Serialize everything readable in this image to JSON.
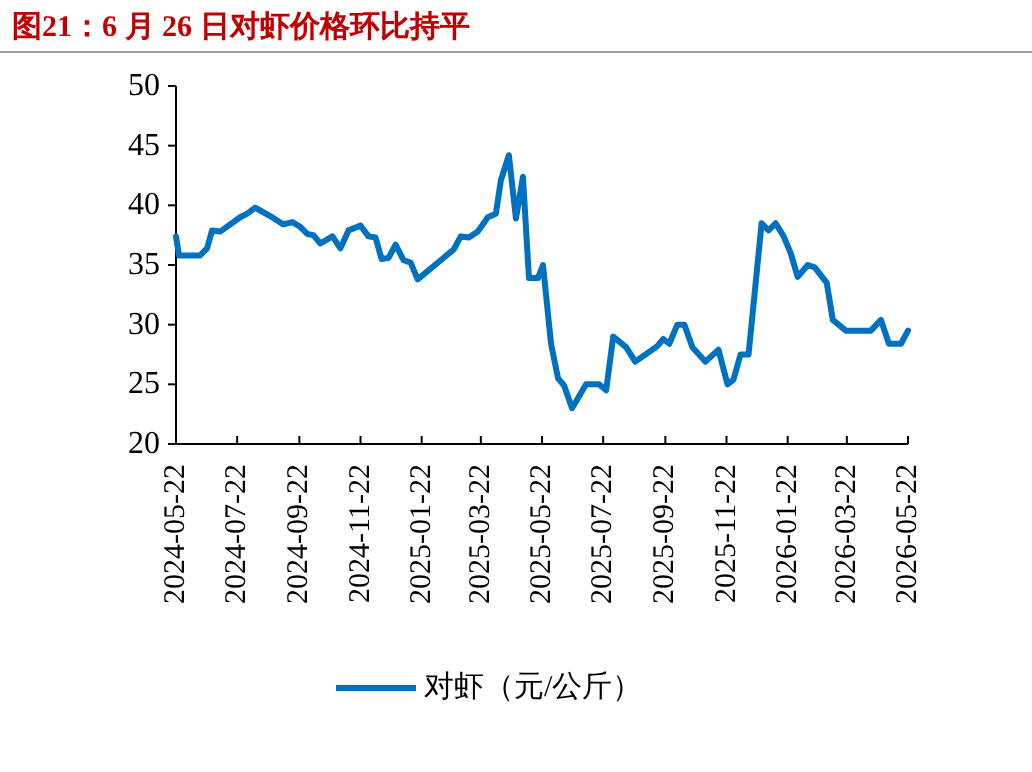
{
  "chart_data": {
    "type": "line",
    "title": "图21：6 月 26 日对虾价格环比持平",
    "x": [
      "2024-05-22",
      "2024-05-25",
      "2024-06-15",
      "2024-06-22",
      "2024-06-27",
      "2024-07-05",
      "2024-07-25",
      "2024-08-01",
      "2024-08-09",
      "2024-08-24",
      "2024-09-06",
      "2024-09-15",
      "2024-09-23",
      "2024-09-30",
      "2024-10-06",
      "2024-10-13",
      "2024-10-25",
      "2024-11-02",
      "2024-11-10",
      "2024-11-22",
      "2024-11-30",
      "2024-12-07",
      "2024-12-13",
      "2024-12-20",
      "2024-12-27",
      "2025-01-04",
      "2025-01-11",
      "2025-01-18",
      "2025-02-10",
      "2025-02-20",
      "2025-02-23",
      "2025-03-02",
      "2025-03-10",
      "2025-03-19",
      "2025-03-29",
      "2025-04-06",
      "2025-04-11",
      "2025-04-19",
      "2025-04-26",
      "2025-05-03",
      "2025-05-09",
      "2025-05-18",
      "2025-05-23",
      "2025-05-31",
      "2025-06-07",
      "2025-06-13",
      "2025-06-21",
      "2025-07-05",
      "2025-07-18",
      "2025-07-25",
      "2025-08-01",
      "2025-08-14",
      "2025-08-23",
      "2025-09-04",
      "2025-09-14",
      "2025-09-20",
      "2025-09-26",
      "2025-10-04",
      "2025-10-11",
      "2025-10-19",
      "2025-11-01",
      "2025-11-14",
      "2025-11-23",
      "2025-11-29",
      "2025-12-06",
      "2025-12-14",
      "2025-12-27",
      "2026-01-03",
      "2026-01-10",
      "2026-01-18",
      "2026-01-25",
      "2026-02-01",
      "2026-02-11",
      "2026-02-18",
      "2026-03-02",
      "2026-03-08",
      "2026-03-21",
      "2026-04-15",
      "2026-04-25",
      "2026-05-03",
      "2026-05-15",
      "2026-05-22"
    ],
    "series": [
      {
        "name": "对虾（元/公斤）",
        "color": "#0070c0",
        "values": [
          37.4,
          35.8,
          35.8,
          36.4,
          37.9,
          37.8,
          39.0,
          39.3,
          39.8,
          39.1,
          38.4,
          38.6,
          38.2,
          37.6,
          37.5,
          36.8,
          37.4,
          36.4,
          37.9,
          38.3,
          37.4,
          37.3,
          35.5,
          35.6,
          36.7,
          35.4,
          35.2,
          33.8,
          35.4,
          36.1,
          36.3,
          37.4,
          37.3,
          37.8,
          39.0,
          39.3,
          42.1,
          44.2,
          38.9,
          42.4,
          33.9,
          33.9,
          35.0,
          28.4,
          25.5,
          24.9,
          23.0,
          25.0,
          25.0,
          24.5,
          29.0,
          28.1,
          26.9,
          27.6,
          28.2,
          28.8,
          28.4,
          30.0,
          30.0,
          28.1,
          26.9,
          27.9,
          25.0,
          25.4,
          27.5,
          27.5,
          38.5,
          37.9,
          38.5,
          37.4,
          36.0,
          34.0,
          35.0,
          34.8,
          33.5,
          30.4,
          29.5,
          29.5,
          30.4,
          28.4,
          28.4,
          29.5
        ]
      }
    ],
    "xlim": [
      "2024-05-22",
      "2026-05-22"
    ],
    "xticks": [
      "2024-05-22",
      "2024-07-22",
      "2024-09-22",
      "2024-11-22",
      "2025-01-22",
      "2025-03-22",
      "2025-05-22",
      "2025-07-22",
      "2025-09-22",
      "2025-11-22",
      "2026-01-22",
      "2026-03-22",
      "2026-05-22"
    ],
    "ylim": [
      20,
      50
    ],
    "yticks": [
      20,
      25,
      30,
      35,
      40,
      45,
      50
    ],
    "grid": false,
    "legend": "bottom",
    "line_style": "solid",
    "marker": "none"
  }
}
